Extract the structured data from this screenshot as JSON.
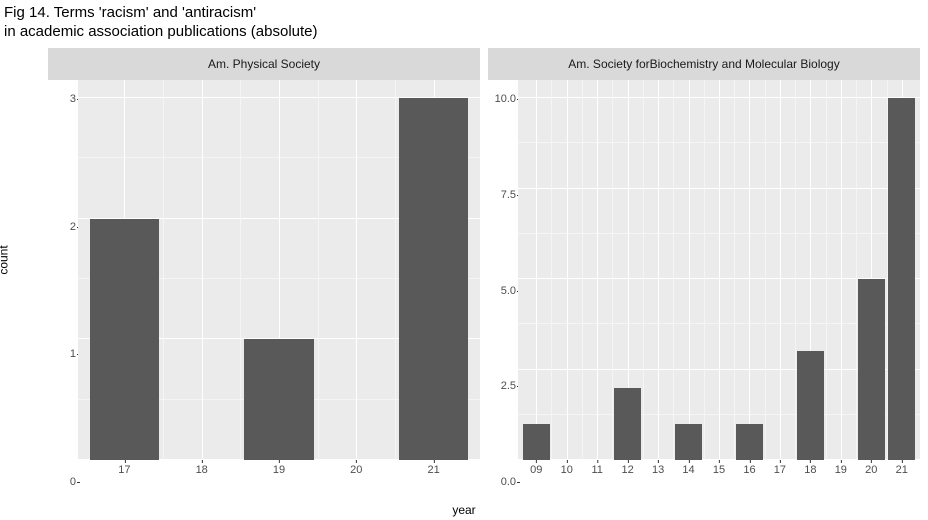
{
  "title_line1": "Fig 14. Terms 'racism' and 'antiracism'",
  "title_line2": "in academic association publications (absolute)",
  "x_axis_label": "year",
  "y_axis_label": "count",
  "bar_color": "#595959",
  "panel_bg": "#ebebeb",
  "strip_bg": "#d9d9d9",
  "grid_color": "#ffffff",
  "panels": [
    {
      "strip": "Am. Physical Society",
      "type": "bar",
      "x_domain": [
        16.4,
        21.6
      ],
      "y_domain": [
        0,
        3.15
      ],
      "x_ticks": [
        17,
        18,
        19,
        20,
        21
      ],
      "y_ticks": [
        0,
        1,
        2,
        3
      ],
      "y_minor": [
        0.5,
        1.5,
        2.5
      ],
      "bar_width": 0.9,
      "data": [
        {
          "x": 17,
          "y": 2
        },
        {
          "x": 19,
          "y": 1
        },
        {
          "x": 21,
          "y": 3
        }
      ]
    },
    {
      "strip": "Am. Society for\nBiochemistry and Molecular Biology",
      "type": "bar",
      "x_domain": [
        8.4,
        21.6
      ],
      "y_domain": [
        0,
        10.5
      ],
      "x_ticks": [
        9,
        10,
        11,
        12,
        13,
        14,
        15,
        16,
        17,
        18,
        19,
        20,
        21
      ],
      "x_tick_labels": [
        "09",
        "10",
        "11",
        "12",
        "13",
        "14",
        "15",
        "16",
        "17",
        "18",
        "19",
        "20",
        "21"
      ],
      "y_ticks": [
        0,
        2.5,
        5,
        7.5,
        10
      ],
      "y_tick_labels": [
        "0.0",
        "2.5",
        "5.0",
        "7.5",
        "10.0"
      ],
      "y_minor": [
        1.25,
        3.75,
        6.25,
        8.75
      ],
      "bar_width": 0.9,
      "data": [
        {
          "x": 9,
          "y": 1
        },
        {
          "x": 12,
          "y": 2
        },
        {
          "x": 14,
          "y": 1
        },
        {
          "x": 16,
          "y": 1
        },
        {
          "x": 18,
          "y": 3
        },
        {
          "x": 20,
          "y": 5
        },
        {
          "x": 21,
          "y": 10
        }
      ]
    }
  ]
}
